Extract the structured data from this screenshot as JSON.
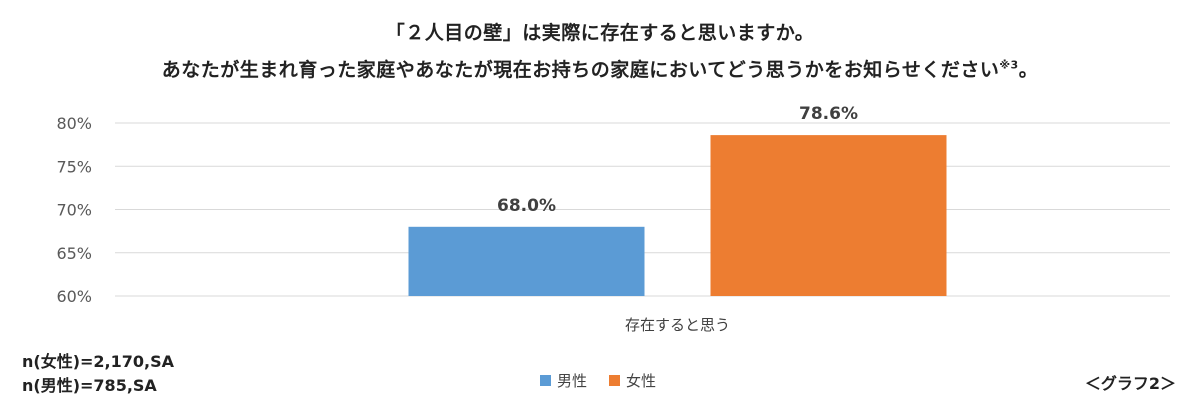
{
  "title_line1": "「２人目の壁」は実際に存在すると思いますか。",
  "title_line2": "あなたが生まれ育った家庭やあなたが現在お持ちの家庭においてどう思うかをお知らせください",
  "title_footnote": "※3",
  "title_end": "。",
  "notes": [
    "n(女性)=2,170,SA",
    "n(男性)=785,SA"
  ],
  "graph_label": "＜グラフ2＞",
  "chart_data": {
    "type": "bar",
    "categories": [
      "存在すると思う"
    ],
    "series": [
      {
        "name": "男性",
        "values": [
          68.0
        ],
        "color": "#5b9bd5",
        "label": "68.0%"
      },
      {
        "name": "女性",
        "values": [
          78.6
        ],
        "color": "#ed7d31",
        "label": "78.6%"
      }
    ],
    "ylim": [
      60,
      80
    ],
    "yticks": [
      60,
      65,
      70,
      75,
      80
    ],
    "ytick_labels": [
      "60%",
      "65%",
      "70%",
      "75%",
      "80%"
    ],
    "grid": true,
    "legend": "bottom"
  }
}
